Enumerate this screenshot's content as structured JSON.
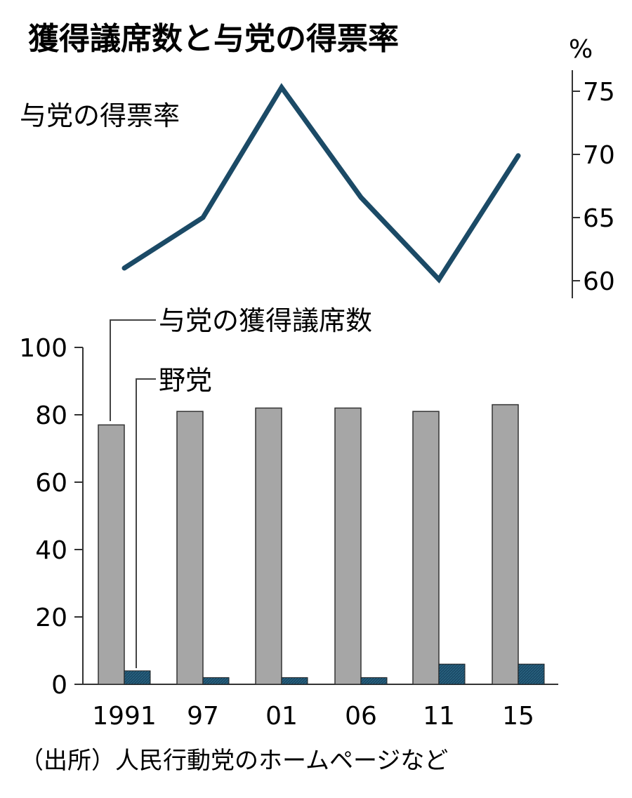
{
  "chart_data": [
    {
      "type": "line",
      "title": "獲得議席数と与党の得票率",
      "series": [
        {
          "name": "与党の得票率",
          "values": [
            61.0,
            65.0,
            75.3,
            66.6,
            60.1,
            69.9
          ]
        }
      ],
      "x": [
        "1991",
        "97",
        "01",
        "06",
        "11",
        "15"
      ],
      "yunit": "%",
      "ylim": [
        60,
        75
      ],
      "yticks": [
        "60",
        "65",
        "70",
        "75"
      ],
      "axis_side": "right",
      "color": "#1b4a66"
    },
    {
      "type": "bar",
      "categories": [
        "1991",
        "97",
        "01",
        "06",
        "11",
        "15"
      ],
      "series": [
        {
          "name": "与党の獲得議席数",
          "values": [
            77,
            81,
            82,
            82,
            81,
            83
          ],
          "color": "#a6a6a6"
        },
        {
          "name": "野党",
          "values": [
            4,
            2,
            2,
            2,
            6,
            6
          ],
          "color": "#1b4a66"
        }
      ],
      "ylim": [
        0,
        100
      ],
      "yticks": [
        "0",
        "20",
        "40",
        "60",
        "80",
        "100"
      ],
      "grid": false,
      "legend": "callout labels top-left"
    }
  ],
  "source": "（出所）人民行動党のホームページなど"
}
